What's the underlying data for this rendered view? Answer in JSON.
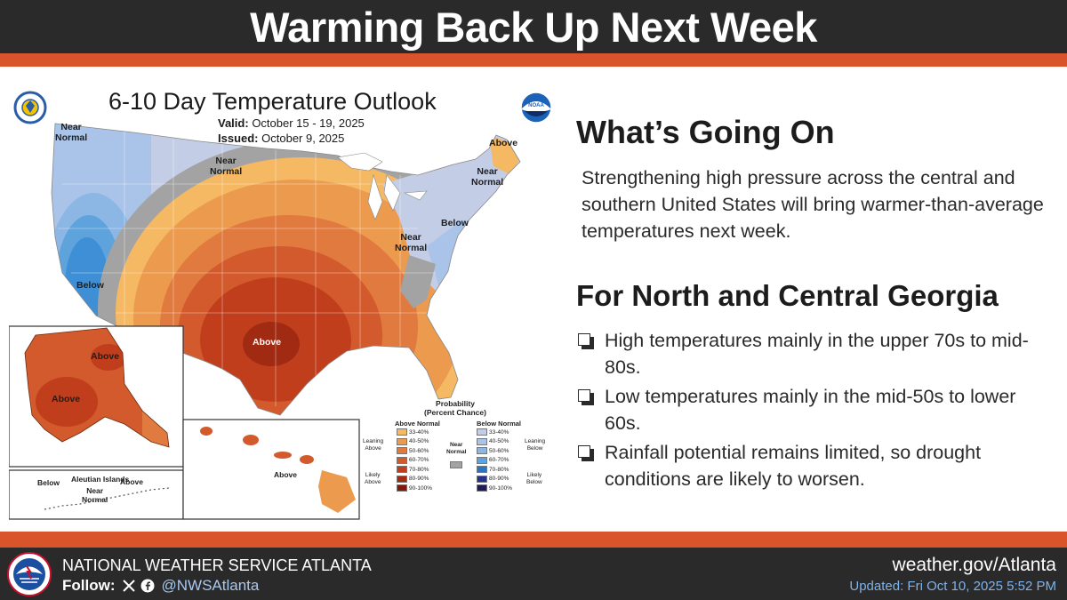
{
  "header": {
    "title": "Warming Back Up Next Week"
  },
  "map": {
    "title": "6-10 Day Temperature Outlook",
    "valid_label": "Valid:",
    "valid_value": "October 15 - 19, 2025",
    "issued_label": "Issued:",
    "issued_value": "October 9, 2025",
    "regions": {
      "near_normal_nw": "Near\nNormal",
      "near_normal_north": "Near\nNormal",
      "near_normal_se": "Near\nNormal",
      "near_normal_ne": "Near\nNormal",
      "above_maine": "Above",
      "below_east": "Below",
      "below_west": "Below",
      "above_texas": "Above",
      "ak_above_1": "Above",
      "ak_above_2": "Above",
      "aleutian_title": "Aleutian Islands",
      "aleutian_below": "Below",
      "aleutian_above": "Above",
      "aleutian_near_normal": "Near\nNormal",
      "hawaii_above": "Above"
    },
    "legend": {
      "title": "Probability\n(Percent Chance)",
      "above_header": "Above Normal",
      "below_header": "Below Normal",
      "near_normal": "Near\nNormal",
      "leaning_above": "Leaning\nAbove",
      "likely_above": "Likely\nAbove",
      "leaning_below": "Leaning\nBelow",
      "likely_below": "Likely\nBelow",
      "ranges": [
        "33-40%",
        "40-50%",
        "50-60%",
        "60-70%",
        "70-80%",
        "80-90%",
        "90-100%"
      ],
      "above_colors": [
        "#f5b863",
        "#eb9a4e",
        "#e07a3e",
        "#d35a2c",
        "#c03e1c",
        "#a12a12",
        "#7d1a0b"
      ],
      "below_colors": [
        "#c4cde6",
        "#a9c4e8",
        "#8cb7e4",
        "#5ea3dc",
        "#2b74c0",
        "#24328a",
        "#1f1a5a"
      ],
      "near_color": "#a3a3a3"
    }
  },
  "panel": {
    "heading1": "What’s Going On",
    "paragraph": "Strengthening high pressure across the central and southern United States will bring warmer-than-average temperatures next week.",
    "heading2": "For North and Central Georgia",
    "bullets": [
      "High temperatures mainly in the upper 70s to mid-80s.",
      "Low temperatures mainly in the mid-50s to lower 60s.",
      "Rainfall potential remains limited, so drought conditions are likely to worsen."
    ]
  },
  "footer": {
    "org": "NATIONAL WEATHER SERVICE ATLANTA",
    "follow_label": "Follow:",
    "handle": "@NWSAtlanta",
    "website": "weather.gov/Atlanta",
    "updated": "Updated: Fri Oct 10, 2025 5:52 PM"
  },
  "icons": {
    "x": "x-logo-icon",
    "facebook": "facebook-icon",
    "noaa": "noaa-logo-icon",
    "doc": "commerce-seal-icon",
    "nws": "nws-logo-icon"
  }
}
